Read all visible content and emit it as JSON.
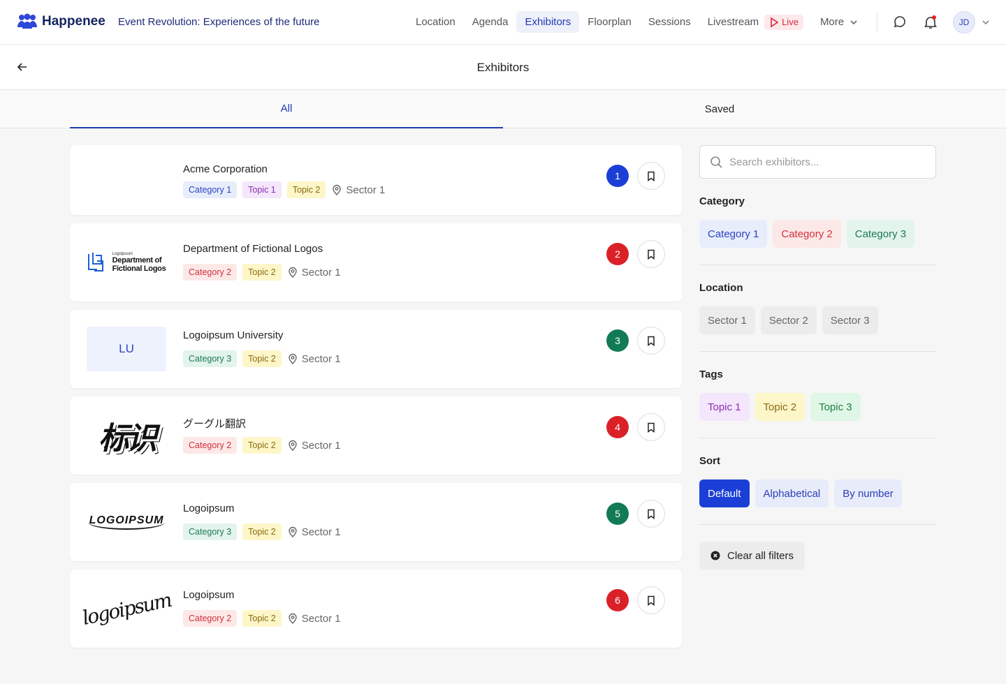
{
  "header": {
    "brand": "Happenee",
    "event_title": "Event Revolution: Experiences of the future",
    "nav": [
      "Location",
      "Agenda",
      "Exhibitors",
      "Floorplan",
      "Sessions",
      "Livestream"
    ],
    "live": "Live",
    "more": "More",
    "avatar": "JD"
  },
  "page": {
    "title": "Exhibitors"
  },
  "tabs": [
    "All",
    "Saved"
  ],
  "exhibitors": [
    {
      "number": 1,
      "name": "Acme Corporation",
      "category": "Category 1",
      "topics": [
        "Topic 1",
        "Topic 2"
      ],
      "location": "Sector 1"
    },
    {
      "number": 2,
      "name": "Department of Fictional Logos",
      "logo_text": [
        "Logoipsum",
        "Department of",
        "Fictional Logos"
      ],
      "category": "Category 2",
      "topics": [
        "Topic 2"
      ],
      "location": "Sector 1"
    },
    {
      "number": 3,
      "name": "Logoipsum University",
      "logo_text": [
        "LU"
      ],
      "category": "Category 3",
      "topics": [
        "Topic 2"
      ],
      "location": "Sector 1"
    },
    {
      "number": 4,
      "name": "グーグル翻訳",
      "logo_text": [
        "标识"
      ],
      "category": "Category 2",
      "topics": [
        "Topic 2"
      ],
      "location": "Sector 1"
    },
    {
      "number": 5,
      "name": "Logoipsum",
      "logo_text": [
        "LOGOIPSUM"
      ],
      "category": "Category 3",
      "topics": [
        "Topic 2"
      ],
      "location": "Sector 1"
    },
    {
      "number": 6,
      "name": "Logoipsum",
      "logo_text": [
        "logoipsum"
      ],
      "category": "Category 2",
      "topics": [
        "Topic 2"
      ],
      "location": "Sector 1"
    }
  ],
  "filters": {
    "search_placeholder": "Search exhibitors...",
    "groups": [
      {
        "title": "Category",
        "options": [
          "Category 1",
          "Category 2",
          "Category 3"
        ]
      },
      {
        "title": "Location",
        "options": [
          "Sector 1",
          "Sector 2",
          "Sector 3"
        ]
      },
      {
        "title": "Tags",
        "options": [
          "Topic 1",
          "Topic 2",
          "Topic 3"
        ]
      },
      {
        "title": "Sort",
        "options": [
          "Default",
          "Alphabetical",
          "By number"
        ]
      }
    ],
    "clear": "Clear all filters"
  }
}
